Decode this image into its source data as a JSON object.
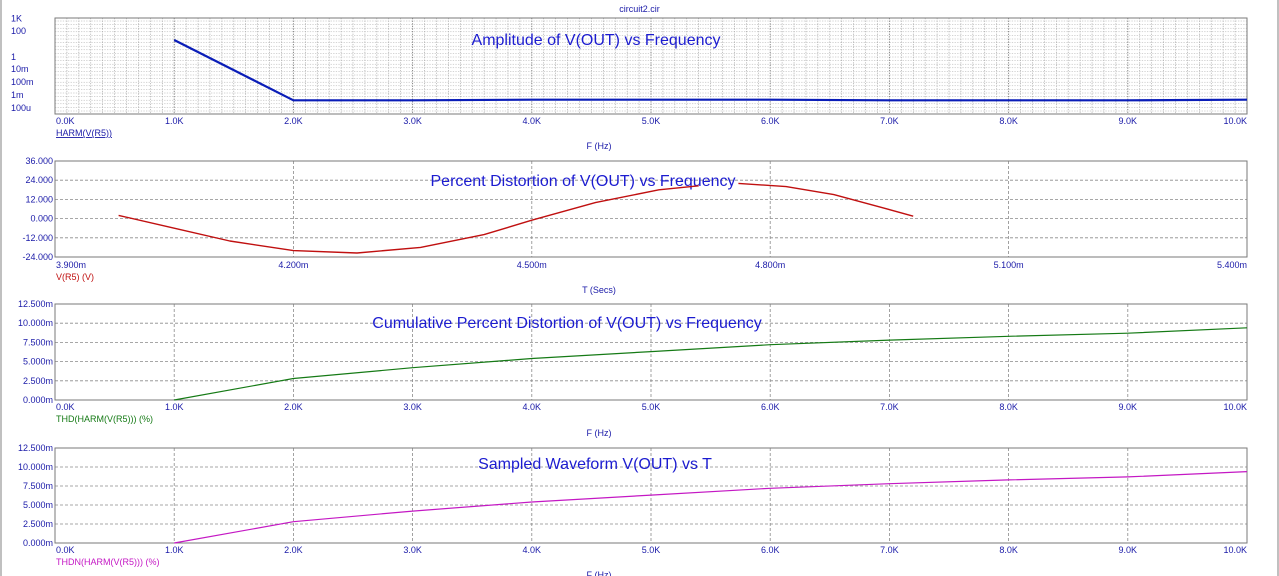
{
  "window": {
    "title": "circuit2.cir"
  },
  "colors": {
    "axis_text": "#1a1aa8",
    "grid": "#8a8a8a",
    "frame": "#7a7a7a",
    "overlay_title": "#1c1cd0"
  },
  "chart_data": [
    {
      "type": "line",
      "title": "Amplitude of V(OUT) vs Frequency",
      "xlabel": "F (Hz)",
      "ylabel": "",
      "x_ticks": [
        "0.0K",
        "1.0K",
        "2.0K",
        "3.0K",
        "4.0K",
        "5.0K",
        "6.0K",
        "7.0K",
        "8.0K",
        "9.0K",
        "10.0K"
      ],
      "y_ticks": [
        "1K",
        "100",
        "1",
        "10m",
        "100m",
        "1m",
        "100u"
      ],
      "xlim": [
        0,
        10000
      ],
      "yscale": "log",
      "ylim": [
        0.0001,
        1000
      ],
      "grid": "dense dotted",
      "series": [
        {
          "name": "HARM(V(R5))",
          "color": "#0a1db8",
          "x": [
            1000,
            2000,
            3000,
            4000,
            5000,
            6000,
            7000,
            8000,
            9000,
            10000
          ],
          "y": [
            25,
            0.001,
            0.001,
            0.0011,
            0.0011,
            0.0011,
            0.001,
            0.001,
            0.001,
            0.0011
          ]
        }
      ]
    },
    {
      "type": "line",
      "title": "Percent Distortion of V(OUT) vs Frequency",
      "xlabel": "T (Secs)",
      "ylabel": "",
      "x_ticks": [
        "3.900m",
        "4.200m",
        "4.500m",
        "4.800m",
        "5.100m",
        "5.400m"
      ],
      "y_ticks": [
        "36.000",
        "24.000",
        "12.000",
        "0.000",
        "-12.000",
        "-24.000"
      ],
      "xlim": [
        0.0039,
        0.0054
      ],
      "ylim": [
        -24,
        36
      ],
      "grid": "dashed",
      "series": [
        {
          "name": "V(R5) (V)",
          "color": "#c01010",
          "x": [
            0.00398,
            0.00405,
            0.00412,
            0.0042,
            0.00428,
            0.00436,
            0.00444,
            0.0045,
            0.00458,
            0.00466,
            0.00471
          ],
          "y": [
            2,
            -6,
            -14,
            -20,
            -21.5,
            -18,
            -10,
            -1,
            10,
            18,
            20.5
          ]
        },
        {
          "name": "",
          "color": "#c01010",
          "x": [
            0.00476,
            0.00482,
            0.00488,
            0.00494,
            0.00498
          ],
          "y": [
            22,
            20,
            15,
            7,
            1.5
          ]
        }
      ]
    },
    {
      "type": "line",
      "title": "Cumulative Percent Distortion of V(OUT) vs Frequency",
      "xlabel": "F (Hz)",
      "ylabel": "",
      "x_ticks": [
        "0.0K",
        "1.0K",
        "2.0K",
        "3.0K",
        "4.0K",
        "5.0K",
        "6.0K",
        "7.0K",
        "8.0K",
        "9.0K",
        "10.0K"
      ],
      "y_ticks": [
        "12.500m",
        "10.000m",
        "7.500m",
        "5.000m",
        "2.500m",
        "0.000m"
      ],
      "xlim": [
        0,
        10000
      ],
      "ylim": [
        0,
        12.5
      ],
      "grid": "dashed",
      "series": [
        {
          "name": "THD(HARM(V(R5))) (%)",
          "color": "#157a15",
          "x": [
            1000,
            2000,
            3000,
            4000,
            5000,
            6000,
            7000,
            8000,
            9000,
            10000
          ],
          "y": [
            0,
            2.8,
            4.2,
            5.4,
            6.3,
            7.2,
            7.8,
            8.3,
            8.7,
            9.4
          ]
        }
      ]
    },
    {
      "type": "line",
      "title": "Sampled Waveform  V(OUT) vs T",
      "xlabel": "F (Hz)",
      "ylabel": "",
      "x_ticks": [
        "0.0K",
        "1.0K",
        "2.0K",
        "3.0K",
        "4.0K",
        "5.0K",
        "6.0K",
        "7.0K",
        "8.0K",
        "9.0K",
        "10.0K"
      ],
      "y_ticks": [
        "12.500m",
        "10.000m",
        "7.500m",
        "5.000m",
        "2.500m",
        "0.000m"
      ],
      "xlim": [
        0,
        10000
      ],
      "ylim": [
        0,
        12.5
      ],
      "grid": "dashed",
      "series": [
        {
          "name": "THDN(HARM(V(R5))) (%)",
          "color": "#c418c4",
          "x": [
            1000,
            2000,
            3000,
            4000,
            5000,
            6000,
            7000,
            8000,
            9000,
            10000
          ],
          "y": [
            0,
            2.8,
            4.2,
            5.4,
            6.3,
            7.2,
            7.8,
            8.3,
            8.7,
            9.4
          ]
        }
      ]
    }
  ]
}
